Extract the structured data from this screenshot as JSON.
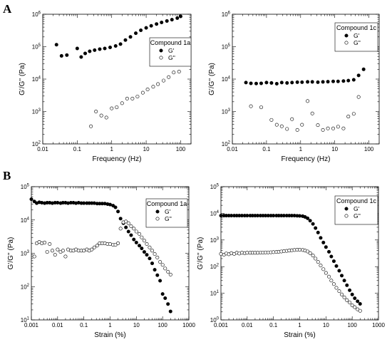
{
  "figure": {
    "panel_letters": [
      "A",
      "B"
    ]
  },
  "chart_data": [
    {
      "type": "scatter",
      "panel": "A",
      "legend_title": "Compound 1a",
      "legend_placement": "top-right",
      "xlabel": "Frequency (Hz)",
      "ylabel": "G'/G'' (Pa)",
      "xscale": "log",
      "yscale": "log",
      "xlim": [
        0.01,
        200
      ],
      "ylim": [
        100,
        1000000
      ],
      "x_ticks": [
        0.01,
        0.1,
        1,
        10,
        100
      ],
      "x_tick_labels": [
        "0.01",
        "0.1",
        "1",
        "10",
        "100"
      ],
      "y_ticks": [
        100,
        1000,
        10000,
        100000,
        1000000
      ],
      "y_tick_labels": [
        "10^2",
        "10^3",
        "10^4",
        "10^5",
        "10^6"
      ],
      "series": [
        {
          "name": "G'",
          "marker": "filled-circle",
          "x": [
            0.025,
            0.035,
            0.05,
            0.1,
            0.13,
            0.17,
            0.23,
            0.32,
            0.45,
            0.63,
            0.9,
            1.3,
            1.8,
            2.5,
            3.5,
            5,
            7,
            10,
            14,
            20,
            28,
            40,
            56,
            80,
            100
          ],
          "y": [
            115000,
            52000,
            55000,
            88000,
            48000,
            62000,
            72000,
            78000,
            84000,
            88000,
            95000,
            105000,
            120000,
            160000,
            200000,
            260000,
            320000,
            380000,
            440000,
            500000,
            560000,
            620000,
            680000,
            760000,
            860000
          ]
        },
        {
          "name": "G''",
          "marker": "open-circle",
          "x": [
            0.25,
            0.35,
            0.5,
            0.7,
            1.0,
            1.4,
            2.0,
            2.8,
            4.0,
            5.6,
            8.0,
            11,
            16,
            22,
            32,
            45,
            63,
            90
          ],
          "y": [
            350,
            1000,
            750,
            650,
            1250,
            1350,
            1800,
            2500,
            2500,
            2900,
            3800,
            4800,
            5800,
            7000,
            9000,
            11500,
            16000,
            17000
          ]
        }
      ]
    },
    {
      "type": "scatter",
      "panel": "A",
      "legend_title": "Compound 1c",
      "legend_placement": "top-right",
      "xlabel": "Frequency (Hz)",
      "ylabel": "G'/G'' (Pa)",
      "xscale": "log",
      "yscale": "log",
      "xlim": [
        0.01,
        200
      ],
      "ylim": [
        100,
        1000000
      ],
      "x_ticks": [
        0.01,
        0.1,
        1,
        10,
        100
      ],
      "x_tick_labels": [
        "0.01",
        "0.1",
        "1",
        "10",
        "100"
      ],
      "y_ticks": [
        100,
        1000,
        10000,
        100000,
        1000000
      ],
      "y_tick_labels": [
        "10^2",
        "10^3",
        "10^4",
        "10^5",
        "10^6"
      ],
      "series": [
        {
          "name": "G'",
          "marker": "filled-circle",
          "x": [
            0.025,
            0.035,
            0.05,
            0.07,
            0.1,
            0.14,
            0.2,
            0.28,
            0.4,
            0.56,
            0.8,
            1.1,
            1.6,
            2.2,
            3.2,
            4.5,
            6.3,
            9,
            12.5,
            18,
            25,
            36,
            50,
            70
          ],
          "y": [
            7800,
            7400,
            7300,
            7400,
            7800,
            7600,
            7200,
            7800,
            7600,
            7800,
            8000,
            8000,
            8200,
            8200,
            8000,
            8200,
            8300,
            8500,
            8500,
            8700,
            9000,
            9500,
            13000,
            20000
          ]
        },
        {
          "name": "G''",
          "marker": "open-circle",
          "x": [
            0.035,
            0.07,
            0.14,
            0.2,
            0.28,
            0.4,
            0.56,
            0.8,
            1.1,
            1.6,
            2.2,
            3.2,
            4.5,
            6.3,
            9,
            12.5,
            18,
            25,
            36,
            50
          ],
          "y": [
            1450,
            1350,
            550,
            390,
            350,
            290,
            580,
            270,
            390,
            2100,
            870,
            380,
            270,
            300,
            300,
            340,
            300,
            700,
            850,
            2800
          ]
        }
      ]
    },
    {
      "type": "scatter",
      "panel": "B",
      "legend_title": "Compound 1a",
      "legend_placement": "top-right",
      "xlabel": "Strain (%)",
      "ylabel": "G'/G'' (Pa)",
      "xscale": "log",
      "yscale": "log",
      "xlim": [
        0.001,
        1000
      ],
      "ylim": [
        10,
        100000
      ],
      "x_ticks": [
        0.001,
        0.01,
        0.1,
        1,
        10,
        100,
        1000
      ],
      "x_tick_labels": [
        "0.001",
        "0.01",
        "0.1",
        "1",
        "10",
        "100",
        "1000"
      ],
      "y_ticks": [
        10,
        100,
        1000,
        10000,
        100000
      ],
      "y_tick_labels": [
        "10^1",
        "10^2",
        "10^3",
        "10^4",
        "10^5"
      ],
      "series": [
        {
          "name": "G'",
          "marker": "filled-circle",
          "x": [
            0.001,
            0.0013,
            0.0016,
            0.002,
            0.0025,
            0.0032,
            0.004,
            0.005,
            0.0063,
            0.008,
            0.01,
            0.013,
            0.016,
            0.02,
            0.025,
            0.032,
            0.04,
            0.05,
            0.063,
            0.08,
            0.1,
            0.13,
            0.16,
            0.2,
            0.25,
            0.32,
            0.4,
            0.5,
            0.63,
            0.8,
            1.0,
            1.3,
            1.6,
            2.0,
            2.5,
            3.2,
            4.0,
            5.0,
            6.3,
            8.0,
            10,
            13,
            16,
            20,
            25,
            32,
            40,
            50,
            63,
            80,
            100,
            125,
            160,
            200
          ],
          "y": [
            42000,
            36000,
            32000,
            34000,
            33000,
            32000,
            33000,
            33000,
            32000,
            33000,
            33000,
            32000,
            33000,
            33000,
            32000,
            33000,
            33000,
            32000,
            33000,
            32000,
            32000,
            32000,
            32000,
            32000,
            32000,
            31000,
            31000,
            31000,
            31000,
            30000,
            29000,
            27000,
            24000,
            18000,
            11000,
            8000,
            6000,
            4500,
            3500,
            2600,
            2100,
            1700,
            1400,
            1100,
            900,
            700,
            500,
            320,
            220,
            150,
            60,
            45,
            30,
            18
          ]
        },
        {
          "name": "G''",
          "marker": "open-circle",
          "x": [
            0.0013,
            0.0016,
            0.002,
            0.0025,
            0.0032,
            0.004,
            0.005,
            0.0063,
            0.008,
            0.01,
            0.013,
            0.016,
            0.02,
            0.025,
            0.032,
            0.04,
            0.05,
            0.063,
            0.08,
            0.1,
            0.13,
            0.16,
            0.2,
            0.25,
            0.32,
            0.4,
            0.5,
            0.63,
            0.8,
            1.0,
            1.3,
            1.6,
            2.0,
            2.5,
            3.2,
            4.0,
            5.0,
            6.3,
            8.0,
            10,
            13,
            16,
            20,
            25,
            32,
            40,
            50,
            63,
            80,
            100,
            125,
            160,
            200
          ],
          "y": [
            800,
            2000,
            2200,
            2000,
            2100,
            1100,
            1900,
            1200,
            900,
            1300,
            1100,
            1200,
            800,
            1300,
            1200,
            1200,
            1300,
            1200,
            1200,
            1200,
            1300,
            1200,
            1300,
            1500,
            1700,
            2000,
            2000,
            2000,
            1900,
            1900,
            1800,
            1800,
            2000,
            5500,
            8500,
            9000,
            8000,
            6500,
            5500,
            4500,
            3800,
            3000,
            2400,
            1900,
            1500,
            1200,
            950,
            750,
            550,
            450,
            350,
            280,
            230
          ]
        }
      ]
    },
    {
      "type": "scatter",
      "panel": "B",
      "legend_title": "Compound 1c",
      "legend_placement": "top-right",
      "xlabel": "Strain (%)",
      "ylabel": "G'/G'' (Pa)",
      "xscale": "log",
      "yscale": "log",
      "xlim": [
        0.001,
        1000
      ],
      "ylim": [
        1,
        100000
      ],
      "x_ticks": [
        0.001,
        0.01,
        0.1,
        1,
        10,
        100,
        1000
      ],
      "x_tick_labels": [
        "0.001",
        "0.01",
        "0.1",
        "1",
        "10",
        "100",
        "1000"
      ],
      "y_ticks": [
        1,
        10,
        100,
        1000,
        10000,
        100000
      ],
      "y_tick_labels": [
        "10^0",
        "10^1",
        "10^2",
        "10^3",
        "10^4",
        "10^5"
      ],
      "series": [
        {
          "name": "G'",
          "marker": "filled-circle",
          "x": [
            0.001,
            0.0013,
            0.0016,
            0.002,
            0.0025,
            0.0032,
            0.004,
            0.005,
            0.0063,
            0.008,
            0.01,
            0.013,
            0.016,
            0.02,
            0.025,
            0.032,
            0.04,
            0.05,
            0.063,
            0.08,
            0.1,
            0.13,
            0.16,
            0.2,
            0.25,
            0.32,
            0.4,
            0.5,
            0.63,
            0.8,
            1.0,
            1.3,
            1.6,
            2.0,
            2.5,
            3.2,
            4.0,
            5.0,
            6.3,
            8.0,
            10,
            13,
            16,
            20,
            25,
            32,
            40,
            50,
            63,
            80,
            100,
            125,
            160,
            200
          ],
          "y": [
            8200,
            8200,
            8200,
            8200,
            8200,
            8200,
            8200,
            8200,
            8200,
            8200,
            8200,
            8200,
            8200,
            8200,
            8200,
            8200,
            8200,
            8200,
            8200,
            8200,
            8200,
            8200,
            8200,
            8200,
            8200,
            8200,
            8200,
            8200,
            8200,
            8100,
            8000,
            7800,
            7300,
            6500,
            5300,
            4000,
            2800,
            1900,
            1200,
            800,
            540,
            360,
            240,
            160,
            105,
            70,
            46,
            30,
            20,
            13,
            9,
            6.5,
            5,
            4
          ]
        },
        {
          "name": "G''",
          "marker": "open-circle",
          "x": [
            0.001,
            0.0013,
            0.0016,
            0.002,
            0.0025,
            0.0032,
            0.004,
            0.005,
            0.0063,
            0.008,
            0.01,
            0.013,
            0.016,
            0.02,
            0.025,
            0.032,
            0.04,
            0.05,
            0.063,
            0.08,
            0.1,
            0.13,
            0.16,
            0.2,
            0.25,
            0.32,
            0.4,
            0.5,
            0.63,
            0.8,
            1.0,
            1.3,
            1.6,
            2.0,
            2.5,
            3.2,
            4.0,
            5.0,
            6.3,
            8.0,
            10,
            13,
            16,
            20,
            25,
            32,
            40,
            50,
            63,
            80,
            100,
            125,
            160,
            200
          ],
          "y": [
            300,
            280,
            310,
            290,
            320,
            300,
            330,
            310,
            330,
            320,
            330,
            330,
            330,
            330,
            330,
            335,
            335,
            340,
            340,
            345,
            350,
            355,
            360,
            370,
            380,
            390,
            400,
            410,
            420,
            430,
            430,
            420,
            400,
            370,
            320,
            260,
            200,
            150,
            110,
            80,
            58,
            42,
            30,
            22,
            16,
            12,
            9,
            7,
            5.5,
            4.5,
            3.5,
            3,
            2.5,
            2.2
          ]
        }
      ]
    }
  ]
}
